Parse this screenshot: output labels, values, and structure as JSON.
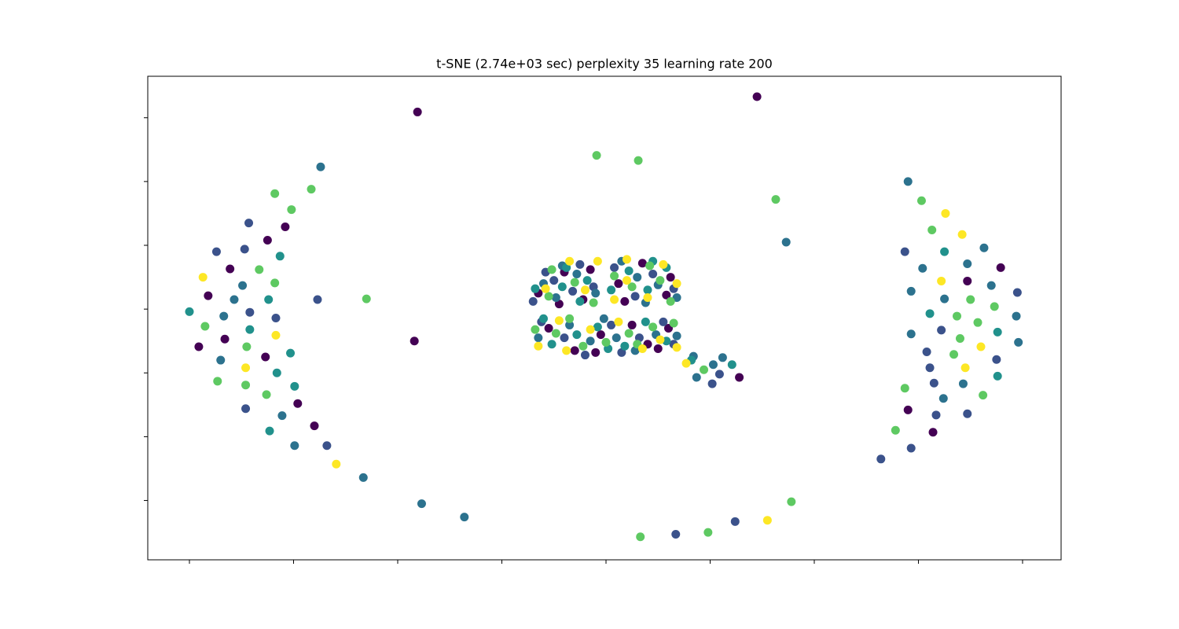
{
  "chart_data": {
    "type": "scatter",
    "title": "t-SNE (2.74e+03 sec) perplexity 35 learning rate 200",
    "xlim": [
      -44,
      43.7
    ],
    "ylim": [
      -39.3,
      36.5
    ],
    "xticks": [
      -40,
      -30,
      -20,
      -10,
      0,
      10,
      20,
      30,
      40
    ],
    "yticks": [
      -30,
      -20,
      -10,
      0,
      10,
      20,
      30
    ],
    "series": [
      {
        "color": "#440154",
        "x": [
          -30.8,
          -32.5,
          -36.1,
          -38.2,
          -36.6,
          -39.1,
          -32.7,
          -29.6,
          -28.0,
          -18.1,
          14.5,
          -18.4,
          12.8,
          37.9,
          34.7,
          29.0,
          31.4,
          -6.5,
          -4.0,
          -2.2,
          -1.5,
          1.2,
          3.5,
          5.8,
          6.2,
          -5.5,
          -3.0,
          -0.5,
          2.5,
          4.0,
          6.0,
          -4.5,
          1.8,
          -1.0,
          5.0
        ],
        "values": [
          12.9,
          10.8,
          6.3,
          2.1,
          -4.7,
          -5.9,
          -7.5,
          -14.8,
          -18.3,
          30.9,
          33.3,
          -5.0,
          -10.7,
          6.5,
          4.4,
          -15.8,
          -19.3,
          2.5,
          5.8,
          1.5,
          6.2,
          4.0,
          7.2,
          2.2,
          5.0,
          -3.0,
          -6.5,
          -4.0,
          -2.5,
          -5.5,
          -3.0,
          0.8,
          1.2,
          -6.8,
          -6.2
        ]
      },
      {
        "color": "#3b528b",
        "x": [
          -34.3,
          -37.4,
          -34.7,
          -27.7,
          -34.2,
          -31.7,
          -34.6,
          -26.8,
          6.7,
          12.4,
          10.9,
          10.2,
          28.7,
          39.5,
          32.2,
          30.8,
          37.5,
          31.1,
          31.5,
          31.7,
          34.7,
          29.3,
          26.4,
          -7.0,
          -5.0,
          -3.2,
          -2.5,
          0.8,
          2.8,
          4.5,
          6.5,
          -6.2,
          -4.0,
          -2.0,
          0.5,
          3.2,
          5.5,
          6.5,
          -5.8,
          1.5,
          -1.2
        ],
        "values": [
          13.5,
          9.0,
          9.4,
          1.5,
          -0.5,
          -1.4,
          -15.6,
          -21.4,
          -35.3,
          -33.3,
          -10.2,
          -11.7,
          9.0,
          2.6,
          -3.3,
          -6.7,
          -7.9,
          -9.2,
          -11.6,
          -16.6,
          -16.4,
          -21.8,
          -23.5,
          1.2,
          4.5,
          2.8,
          7.0,
          6.5,
          2.0,
          5.5,
          3.2,
          -2.0,
          -4.5,
          -7.2,
          -2.5,
          -4.5,
          -2.0,
          -5.5,
          5.8,
          -6.8,
          3.5
        ]
      },
      {
        "color": "#2c728e",
        "x": [
          -27.4,
          -34.9,
          -35.7,
          -36.7,
          -37.0,
          -31.1,
          -29.9,
          -23.3,
          -17.7,
          -13.6,
          17.3,
          8.4,
          10.3,
          11.2,
          8.7,
          29.0,
          36.3,
          34.7,
          30.4,
          37.0,
          29.3,
          32.5,
          39.4,
          29.3,
          39.6,
          34.3,
          32.4,
          -6.0,
          -4.8,
          -2.8,
          -1.0,
          1.5,
          3.0,
          5.0,
          6.8,
          -6.5,
          -3.5,
          -1.5,
          1.0,
          2.8,
          4.8,
          6.8,
          -4.2,
          3.8,
          -0.2
        ],
        "values": [
          22.3,
          3.7,
          1.5,
          -1.1,
          -8.0,
          -16.7,
          -21.4,
          -26.4,
          -30.5,
          -32.6,
          10.5,
          -7.4,
          -8.7,
          -7.6,
          -10.7,
          20.0,
          9.6,
          7.1,
          6.4,
          3.7,
          2.8,
          1.6,
          -1.1,
          -3.9,
          -5.2,
          -11.7,
          -14.0,
          4.0,
          1.8,
          5.5,
          2.5,
          7.5,
          5.0,
          3.8,
          1.8,
          -4.5,
          -2.5,
          -5.0,
          -4.5,
          -6.5,
          -4.0,
          -4.2,
          6.8,
          1.0,
          -1.5
        ]
      },
      {
        "color": "#21918c",
        "x": [
          -31.3,
          -32.4,
          -40.0,
          -34.2,
          -30.3,
          -31.6,
          -29.9,
          -32.3,
          8.2,
          12.1,
          32.5,
          31.1,
          37.6,
          37.6,
          -6.8,
          -4.2,
          -3.8,
          -1.8,
          0.5,
          2.2,
          4.0,
          5.8,
          -5.2,
          -2.8,
          -0.8,
          1.8,
          3.8,
          5.8,
          -6.0,
          0.2,
          4.5,
          -2.5
        ],
        "values": [
          8.3,
          1.5,
          -0.4,
          -3.2,
          -6.9,
          -10.0,
          -12.1,
          -19.1,
          -8.0,
          -8.7,
          9.0,
          -0.7,
          -3.6,
          -10.5,
          3.2,
          3.5,
          6.5,
          4.5,
          3.0,
          6.0,
          3.0,
          6.5,
          -5.5,
          -4.0,
          -2.8,
          -5.8,
          -2.0,
          -5.0,
          -1.5,
          -6.2,
          7.5,
          1.2
        ]
      },
      {
        "color": "#5ec962",
        "x": [
          -31.8,
          -28.3,
          -30.2,
          -33.3,
          -31.8,
          -23.0,
          -38.5,
          -34.5,
          -37.3,
          -34.6,
          -32.6,
          -0.9,
          3.1,
          16.3,
          3.3,
          9.8,
          17.8,
          9.4,
          30.3,
          31.3,
          35.0,
          37.3,
          33.7,
          35.7,
          34.0,
          33.4,
          28.7,
          36.2,
          27.8,
          -5.5,
          -3.0,
          -5.2,
          -1.2,
          0.8,
          2.5,
          4.2,
          6.2,
          -4.8,
          -2.2,
          0.0,
          2.2,
          4.5,
          6.5,
          -6.8,
          3.0,
          5.2,
          -3.5
        ],
        "values": [
          18.1,
          18.8,
          15.6,
          6.2,
          4.1,
          1.6,
          -2.7,
          -5.9,
          -11.3,
          -11.9,
          -13.4,
          24.1,
          23.3,
          17.2,
          -35.7,
          -35.0,
          -30.2,
          -9.5,
          17.0,
          12.4,
          1.5,
          0.4,
          -1.1,
          -2.1,
          -4.6,
          -7.1,
          -12.4,
          -13.5,
          -19.0,
          2.0,
          4.2,
          6.2,
          1.0,
          5.2,
          3.5,
          6.8,
          1.2,
          -3.8,
          -5.8,
          -5.2,
          -3.8,
          -2.8,
          -2.2,
          -3.2,
          -5.5,
          4.5,
          -1.5
        ]
      },
      {
        "color": "#fde725",
        "x": [
          -38.7,
          -31.7,
          -34.6,
          -25.9,
          15.5,
          7.7,
          32.6,
          34.2,
          32.2,
          36.0,
          34.5,
          -5.8,
          -2.0,
          -3.5,
          -0.8,
          2.0,
          0.8,
          5.5,
          6.8,
          -3.8,
          -1.5,
          1.2,
          3.5,
          5.2,
          2.0,
          -6.5,
          -4.5,
          4.0,
          6.8
        ],
        "values": [
          5.0,
          -4.1,
          -9.2,
          -24.3,
          -33.1,
          -8.5,
          15.0,
          11.7,
          4.4,
          -5.9,
          -9.2,
          3.2,
          3.0,
          7.5,
          7.5,
          7.8,
          1.5,
          7.0,
          4.0,
          -6.5,
          -3.2,
          -2.0,
          -6.2,
          -4.8,
          4.5,
          -5.8,
          -1.8,
          1.8,
          -6.0
        ]
      }
    ]
  }
}
